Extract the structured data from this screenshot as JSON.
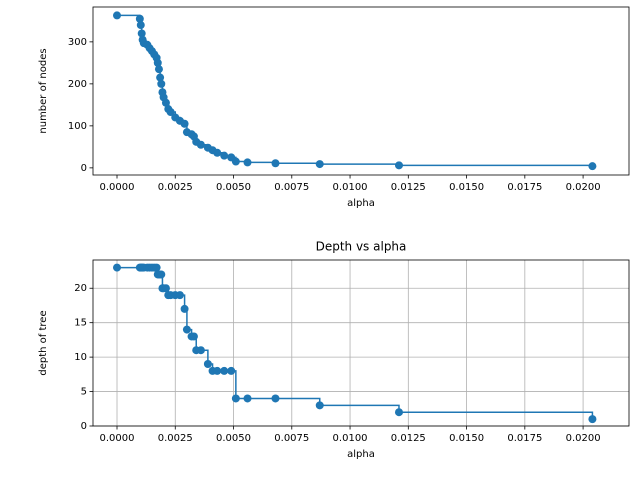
{
  "chart_data": [
    {
      "type": "line",
      "drawstyle": "steps-post",
      "marker": "o",
      "color": "#1f77b4",
      "grid": false,
      "x_label": "alpha",
      "y_label": "number of nodes",
      "x": [
        0,
        0.00098,
        0.00102,
        0.00106,
        0.0011,
        0.00115,
        0.0013,
        0.0014,
        0.0015,
        0.0016,
        0.0017,
        0.00175,
        0.0018,
        0.00185,
        0.0019,
        0.00195,
        0.002,
        0.0021,
        0.0022,
        0.0023,
        0.0025,
        0.0027,
        0.0029,
        0.003,
        0.0032,
        0.0033,
        0.0034,
        0.0036,
        0.0039,
        0.0041,
        0.0043,
        0.0046,
        0.0049,
        0.0051,
        0.0056,
        0.0068,
        0.0087,
        0.0121,
        0.0204
      ],
      "values": [
        363,
        355,
        340,
        320,
        305,
        297,
        293,
        285,
        278,
        270,
        262,
        250,
        235,
        215,
        200,
        180,
        168,
        155,
        140,
        133,
        120,
        112,
        105,
        85,
        80,
        75,
        62,
        55,
        48,
        42,
        36,
        29,
        25,
        15,
        13,
        11,
        9,
        6,
        4
      ],
      "xlim": [
        -0.00103,
        0.02197
      ],
      "ylim": [
        -17,
        383
      ],
      "xticks": [
        {
          "value": 0,
          "label": "0.0000"
        },
        {
          "value": 0.0025,
          "label": "0.0025"
        },
        {
          "value": 0.005,
          "label": "0.0050"
        },
        {
          "value": 0.0075,
          "label": "0.0075"
        },
        {
          "value": 0.01,
          "label": "0.0100"
        },
        {
          "value": 0.0125,
          "label": "0.0125"
        },
        {
          "value": 0.015,
          "label": "0.0150"
        },
        {
          "value": 0.0175,
          "label": "0.0175"
        },
        {
          "value": 0.02,
          "label": "0.0200"
        }
      ],
      "yticks": [
        0,
        100,
        200,
        300
      ]
    },
    {
      "type": "line",
      "drawstyle": "steps-post",
      "marker": "o",
      "color": "#1f77b4",
      "grid": true,
      "title": "Depth vs alpha",
      "x_label": "alpha",
      "y_label": "depth of tree",
      "x": [
        0,
        0.00098,
        0.00102,
        0.00106,
        0.0011,
        0.00115,
        0.0013,
        0.0014,
        0.0015,
        0.0016,
        0.0017,
        0.00175,
        0.0018,
        0.00185,
        0.0019,
        0.00195,
        0.002,
        0.0021,
        0.0022,
        0.0023,
        0.0025,
        0.0027,
        0.0029,
        0.003,
        0.0032,
        0.0033,
        0.0034,
        0.0036,
        0.0039,
        0.0041,
        0.0043,
        0.0046,
        0.0049,
        0.0051,
        0.0056,
        0.0068,
        0.0087,
        0.0121,
        0.0204
      ],
      "values": [
        23,
        23,
        23,
        23,
        23,
        23,
        23,
        23,
        23,
        23,
        23,
        22,
        22,
        22,
        22,
        20,
        20,
        20,
        19,
        19,
        19,
        19,
        17,
        14,
        13,
        13,
        11,
        11,
        9,
        8,
        8,
        8,
        8,
        4,
        4,
        4,
        3,
        2,
        1
      ],
      "xlim": [
        -0.00103,
        0.02197
      ],
      "ylim": [
        0,
        24.1
      ],
      "xticks": [
        {
          "value": 0,
          "label": "0.0000"
        },
        {
          "value": 0.0025,
          "label": "0.0025"
        },
        {
          "value": 0.005,
          "label": "0.0050"
        },
        {
          "value": 0.0075,
          "label": "0.0075"
        },
        {
          "value": 0.01,
          "label": "0.0100"
        },
        {
          "value": 0.0125,
          "label": "0.0125"
        },
        {
          "value": 0.015,
          "label": "0.0150"
        },
        {
          "value": 0.0175,
          "label": "0.0175"
        },
        {
          "value": 0.02,
          "label": "0.0200"
        }
      ],
      "yticks": [
        0,
        5,
        10,
        15,
        20
      ]
    }
  ]
}
